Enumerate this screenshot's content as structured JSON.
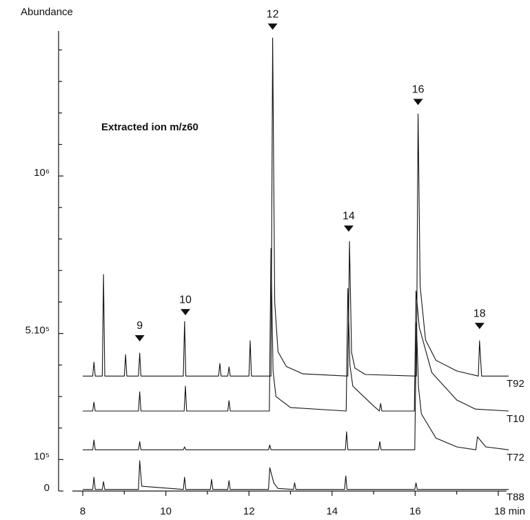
{
  "chart_data": {
    "type": "line",
    "y_label": "Abundance",
    "subtitle": "Extracted ion m/z60",
    "xlim": [
      7.75,
      18.2
    ],
    "ylim": [
      0,
      1460000
    ],
    "xticks": [
      8,
      10,
      12,
      14,
      16,
      {
        "value": 18,
        "label": "18 min"
      }
    ],
    "xticks_minor": [
      9,
      11,
      13,
      15,
      17
    ],
    "yticks": [
      0,
      {
        "value": 100000,
        "label": "10⁵"
      },
      {
        "value": 500000,
        "label": "5.10⁵"
      },
      {
        "value": 1000000,
        "label": "10⁶"
      }
    ],
    "yticks_minor": [
      200000,
      300000,
      400000,
      600000,
      700000,
      800000,
      900000,
      1100000,
      1200000,
      1300000,
      1400000
    ],
    "series": [
      {
        "name": "T92",
        "color": "#111111",
        "x": [
          8.0,
          8.24,
          8.27,
          8.3,
          8.47,
          8.5,
          8.53,
          9.0,
          9.03,
          9.06,
          9.34,
          9.37,
          9.4,
          10.42,
          10.45,
          10.48,
          11.27,
          11.3,
          11.33,
          11.49,
          11.52,
          11.55,
          12.0,
          12.03,
          12.06,
          12.53,
          12.57,
          12.62,
          12.7,
          12.9,
          13.3,
          14.38,
          14.42,
          14.47,
          14.55,
          14.8,
          16.03,
          16.07,
          16.12,
          16.25,
          16.5,
          17.0,
          17.52,
          17.55,
          17.6,
          18.25
        ],
        "values": [
          365000,
          365000,
          409000,
          365000,
          365000,
          687000,
          365000,
          365000,
          433000,
          365000,
          365000,
          438000,
          365000,
          365000,
          538000,
          365000,
          365000,
          405000,
          365000,
          365000,
          394000,
          365000,
          365000,
          477000,
          365000,
          365000,
          1438000,
          600000,
          442000,
          395000,
          372000,
          365000,
          792000,
          440000,
          390000,
          370000,
          365000,
          1197000,
          650000,
          480000,
          415000,
          381000,
          365000,
          477000,
          365000,
          365000
        ]
      },
      {
        "name": "T10",
        "color": "#111111",
        "x": [
          8.0,
          8.24,
          8.27,
          8.3,
          9.34,
          9.37,
          9.4,
          10.44,
          10.47,
          10.5,
          11.49,
          11.52,
          11.55,
          12.49,
          12.53,
          12.58,
          12.65,
          13.0,
          14.34,
          14.38,
          14.43,
          14.5,
          15.0,
          15.14,
          15.17,
          15.2,
          15.98,
          16.02,
          16.1,
          16.4,
          17.0,
          17.45,
          18.25
        ],
        "values": [
          254000,
          254000,
          282000,
          254000,
          254000,
          315000,
          254000,
          254000,
          333000,
          254000,
          254000,
          287000,
          254000,
          254000,
          770000,
          380000,
          300000,
          265000,
          254000,
          643000,
          400000,
          333000,
          270000,
          254000,
          278000,
          254000,
          254000,
          635000,
          519000,
          376000,
          289000,
          260000,
          254000
        ]
      },
      {
        "name": "T72",
        "color": "#111111",
        "x": [
          8.0,
          8.24,
          8.27,
          8.3,
          9.34,
          9.37,
          9.4,
          10.42,
          10.45,
          10.48,
          12.47,
          12.5,
          12.53,
          14.32,
          14.35,
          14.38,
          15.12,
          15.15,
          15.18,
          15.99,
          16.03,
          16.08,
          16.15,
          16.5,
          17.0,
          17.46,
          17.5,
          17.7,
          18.25
        ],
        "values": [
          131000,
          131000,
          162000,
          131000,
          131000,
          157000,
          131000,
          131000,
          140000,
          131000,
          131000,
          146000,
          131000,
          131000,
          188000,
          131000,
          131000,
          157000,
          131000,
          131000,
          534000,
          330000,
          245000,
          168000,
          140000,
          131000,
          172000,
          140000,
          131000
        ]
      },
      {
        "name": "T88",
        "color": "#111111",
        "x": [
          8.0,
          8.24,
          8.27,
          8.3,
          8.47,
          8.5,
          8.53,
          9.34,
          9.37,
          9.42,
          10.42,
          10.45,
          10.48,
          11.07,
          11.1,
          11.13,
          11.49,
          11.52,
          11.55,
          12.47,
          12.5,
          12.6,
          12.7,
          13.07,
          13.1,
          13.13,
          14.3,
          14.33,
          14.36,
          15.99,
          16.02,
          16.05,
          18.25
        ],
        "values": [
          5000,
          5000,
          44000,
          5000,
          5000,
          30000,
          5000,
          5000,
          96000,
          15000,
          5000,
          44000,
          5000,
          5000,
          37000,
          5000,
          5000,
          33000,
          5000,
          5000,
          74000,
          25000,
          8000,
          5000,
          26000,
          5000,
          5000,
          48000,
          5000,
          5000,
          26000,
          5000,
          5000
        ]
      }
    ],
    "annotations": [
      {
        "text": "9",
        "x": 9.37,
        "y": 475000
      },
      {
        "text": "10",
        "x": 10.47,
        "y": 558000
      },
      {
        "text": "12",
        "x": 12.57,
        "y": 1464000
      },
      {
        "text": "14",
        "x": 14.4,
        "y": 823000
      },
      {
        "text": "16",
        "x": 16.07,
        "y": 1225000
      },
      {
        "text": "18",
        "x": 17.55,
        "y": 514000
      }
    ]
  }
}
